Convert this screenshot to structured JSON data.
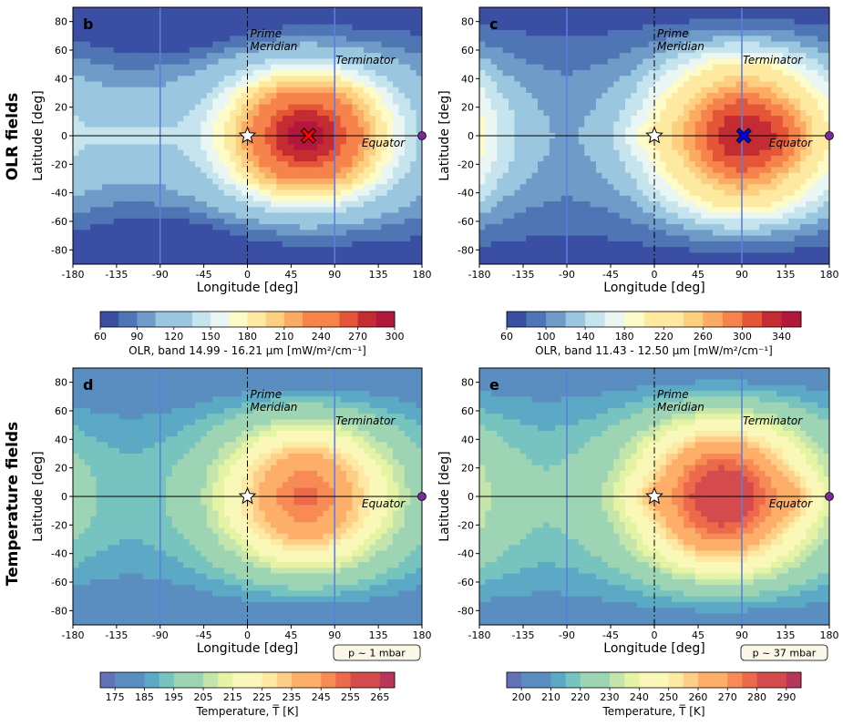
{
  "row_labels": [
    "OLR fields",
    "Temperature fields"
  ],
  "chart_data": [
    {
      "type": "heatmap",
      "panel_letter": "b",
      "xlabel": "Longitude [deg]",
      "ylabel": "Latitude [deg]",
      "xlim": [
        -180,
        180
      ],
      "ylim": [
        -90,
        90
      ],
      "xticks": [
        "-180",
        "-135",
        "-90",
        "-45",
        "0",
        "45",
        "90",
        "135",
        "180"
      ],
      "yticks": [
        "-80",
        "-60",
        "-40",
        "-20",
        "0",
        "20",
        "40",
        "60",
        "80"
      ],
      "annotations": {
        "prime": [
          "Prime",
          "Meridian"
        ],
        "terminator": "Terminator",
        "equator": "Equator"
      },
      "field": {
        "peak_lon": 60,
        "peak_value": 292,
        "min_value": 62,
        "lat_falloff": 2.3,
        "night_band_lats": [
          -80
        ],
        "night_band_value": 62
      },
      "markers": {
        "substellar_lon": 0,
        "hotspot": {
          "lon": 63,
          "lat": 0,
          "symbol": "x",
          "color": "#ff0000"
        },
        "terminator_lon": 90
      },
      "colorbar": {
        "label": "OLR, band 14.99 - 16.21 μm [mW/m²/cm⁻¹]",
        "ticks": [
          60,
          90,
          120,
          150,
          180,
          210,
          240,
          270,
          300
        ],
        "levels": [
          60,
          75,
          90,
          105,
          120,
          135,
          150,
          165,
          180,
          195,
          210,
          225,
          240,
          255,
          270,
          285,
          300
        ]
      }
    },
    {
      "type": "heatmap",
      "panel_letter": "c",
      "xlabel": "Longitude [deg]",
      "ylabel": "Latitude [deg]",
      "xlim": [
        -180,
        180
      ],
      "ylim": [
        -90,
        90
      ],
      "xticks": [
        "-180",
        "-135",
        "-90",
        "-45",
        "0",
        "45",
        "90",
        "135",
        "180"
      ],
      "yticks": [
        "-80",
        "-60",
        "-40",
        "-20",
        "0",
        "20",
        "40",
        "60",
        "80"
      ],
      "annotations": {
        "prime": [
          "Prime",
          "Meridian"
        ],
        "terminator": "Terminator",
        "equator": "Equator"
      },
      "field": {
        "peak_lon": 90,
        "peak_value": 335,
        "min_value": 65,
        "lat_falloff": 1.6
      },
      "markers": {
        "substellar_lon": 0,
        "hotspot": {
          "lon": 92,
          "lat": 0,
          "symbol": "x",
          "color": "#0000ff"
        },
        "terminator_lon": 90
      },
      "colorbar": {
        "label": "OLR, band 11.43 - 12.50 μm [mW/m²/cm⁻¹]",
        "ticks": [
          60,
          100,
          140,
          180,
          220,
          260,
          300,
          340
        ],
        "levels": [
          60,
          80,
          100,
          120,
          140,
          160,
          180,
          200,
          220,
          240,
          260,
          280,
          300,
          320,
          340,
          360
        ]
      }
    },
    {
      "type": "heatmap",
      "panel_letter": "d",
      "xlabel": "Longitude [deg]",
      "ylabel": "Latitude [deg]",
      "xlim": [
        -180,
        180
      ],
      "ylim": [
        -90,
        90
      ],
      "xticks": [
        "-180",
        "-135",
        "-90",
        "-45",
        "0",
        "45",
        "90",
        "135",
        "180"
      ],
      "yticks": [
        "-80",
        "-60",
        "-40",
        "-20",
        "0",
        "20",
        "40",
        "60",
        "80"
      ],
      "annotations": {
        "prime": [
          "Prime",
          "Meridian"
        ],
        "terminator": "Terminator",
        "equator": "Equator"
      },
      "field": {
        "peak_lon": 60,
        "peak_value": 251,
        "min_value": 178,
        "lat_falloff": 1.9
      },
      "markers": {
        "substellar_lon": 0,
        "terminator_lon": 90
      },
      "pressure": "p ~ 1 mbar",
      "colorbar": {
        "label": "Temperature, T̅ [K]",
        "ticks": [
          175,
          185,
          195,
          205,
          215,
          225,
          235,
          245,
          255,
          265
        ],
        "levels": [
          170,
          175,
          180,
          185,
          190,
          195,
          200,
          205,
          210,
          215,
          220,
          225,
          230,
          235,
          240,
          245,
          250,
          255,
          260,
          265,
          270
        ]
      }
    },
    {
      "type": "heatmap",
      "panel_letter": "e",
      "xlabel": "Longitude [deg]",
      "ylabel": "Latitude [deg]",
      "xlim": [
        -180,
        180
      ],
      "ylim": [
        -90,
        90
      ],
      "xticks": [
        "-180",
        "-135",
        "-90",
        "-45",
        "0",
        "45",
        "90",
        "135",
        "180"
      ],
      "yticks": [
        "-80",
        "-60",
        "-40",
        "-20",
        "0",
        "20",
        "40",
        "60",
        "80"
      ],
      "annotations": {
        "prime": [
          "Prime",
          "Meridian"
        ],
        "terminator": "Terminator",
        "equator": "Equator"
      },
      "field": {
        "peak_lon": 70,
        "peak_value": 288,
        "min_value": 205,
        "lat_falloff": 1.7
      },
      "markers": {
        "substellar_lon": 0,
        "terminator_lon": 90
      },
      "pressure": "p ~ 37 mbar",
      "colorbar": {
        "label": "Temperature, T̅ [K]",
        "ticks": [
          200,
          210,
          220,
          230,
          240,
          250,
          260,
          270,
          280,
          290
        ],
        "levels": [
          195,
          200,
          205,
          210,
          215,
          220,
          225,
          230,
          235,
          240,
          245,
          250,
          255,
          260,
          265,
          270,
          275,
          280,
          285,
          290,
          295
        ]
      }
    }
  ],
  "colors": {
    "colormap": [
      "#3a4ea3",
      "#4f75b4",
      "#6f9bc8",
      "#9bc6df",
      "#c6e4ee",
      "#e9f6f4",
      "#fdfbc7",
      "#fee9a0",
      "#fdcf81",
      "#fcab62",
      "#f6834b",
      "#e55638",
      "#c42b32",
      "#b2183b"
    ],
    "temp_colormap": [
      "#6272b7",
      "#5a8ec0",
      "#5ca9c6",
      "#77c3bf",
      "#9dd4b4",
      "#c4e5ab",
      "#e4f3a4",
      "#f9f8b8",
      "#fde9a3",
      "#fecf87",
      "#fdae69",
      "#f88b55",
      "#ec6a4b",
      "#d54b4d",
      "#b93559"
    ],
    "terminator_line": "#5b7ee0",
    "axis": "#000000"
  }
}
